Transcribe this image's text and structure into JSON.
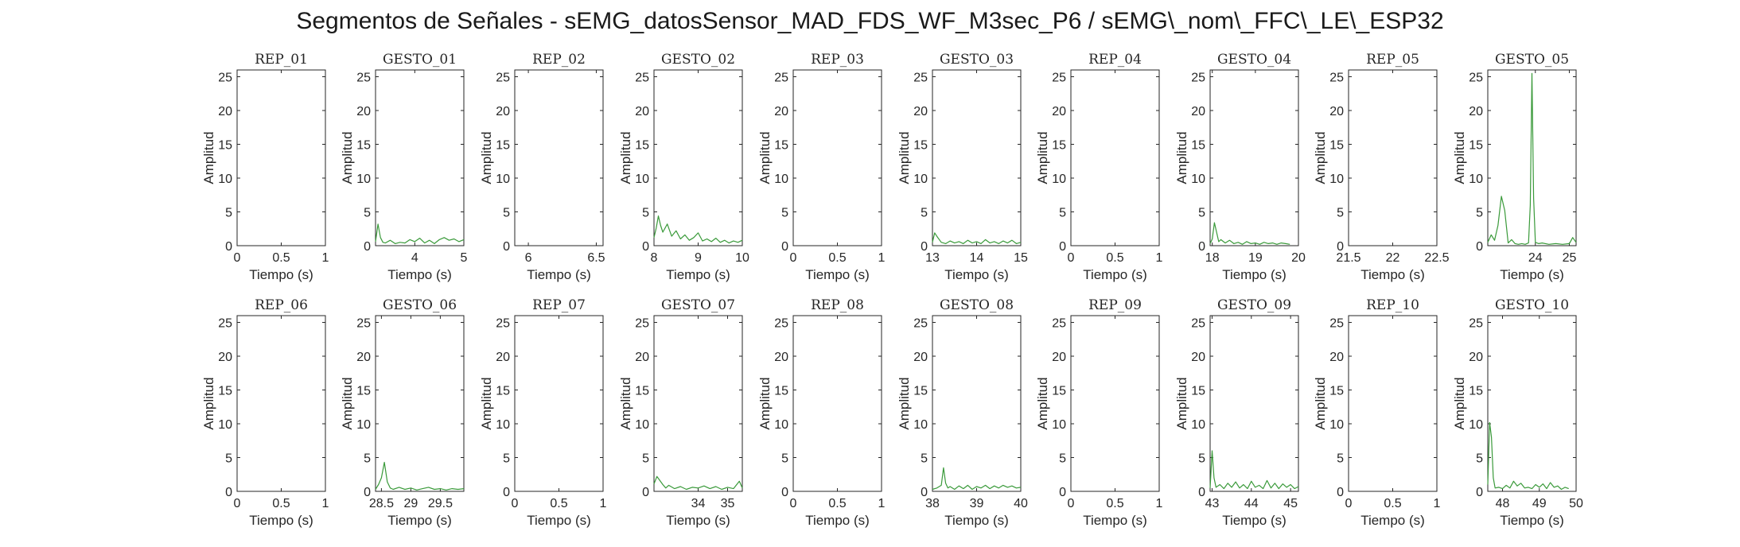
{
  "title": "Segmentos de Señales - sEMG_datosSensor_MAD_FDS_WF_M3sec_P6 / sEMG\\_nom\\_FFC\\_LE\\_ESP32",
  "series_color": "#3a9a3a",
  "chart_data": [
    {
      "type": "line",
      "title": "REP_01",
      "xlabel": "Tiempo (s)",
      "ylabel": "Amplitud",
      "xlim": [
        0,
        1
      ],
      "ylim": [
        0,
        26
      ],
      "xticks": [
        0,
        0.5,
        1
      ],
      "xtick_labels": [
        "0",
        "0.5",
        "1"
      ],
      "yticks": [
        0,
        5,
        10,
        15,
        20,
        25
      ],
      "x": [],
      "y": []
    },
    {
      "type": "line",
      "title": "GESTO_01",
      "xlabel": "Tiempo (s)",
      "ylabel": "Amplitud",
      "xlim": [
        3.2,
        5.0
      ],
      "ylim": [
        0,
        26
      ],
      "xticks": [
        4,
        5
      ],
      "xtick_labels": [
        "4",
        "5"
      ],
      "yticks": [
        0,
        5,
        10,
        15,
        20,
        25
      ],
      "x": [
        3.2,
        3.25,
        3.3,
        3.35,
        3.4,
        3.5,
        3.6,
        3.7,
        3.8,
        3.9,
        4.0,
        4.1,
        4.2,
        4.3,
        4.4,
        4.5,
        4.6,
        4.7,
        4.8,
        4.9,
        5.0
      ],
      "y": [
        0.6,
        3.2,
        1.2,
        0.5,
        0.4,
        0.8,
        0.3,
        0.5,
        0.4,
        0.9,
        0.6,
        1.1,
        0.4,
        0.8,
        0.3,
        0.9,
        1.2,
        0.8,
        1.0,
        0.6,
        0.9
      ]
    },
    {
      "type": "line",
      "title": "REP_02",
      "xlabel": "Tiempo (s)",
      "ylabel": "Amplitud",
      "xlim": [
        5.9,
        6.55
      ],
      "ylim": [
        0,
        26
      ],
      "xticks": [
        6,
        6.5
      ],
      "xtick_labels": [
        "6",
        "6.5"
      ],
      "yticks": [
        0,
        5,
        10,
        15,
        20,
        25
      ],
      "x": [],
      "y": []
    },
    {
      "type": "line",
      "title": "GESTO_02",
      "xlabel": "Tiempo (s)",
      "ylabel": "Amplitud",
      "xlim": [
        8,
        10
      ],
      "ylim": [
        0,
        26
      ],
      "xticks": [
        8,
        9,
        10
      ],
      "xtick_labels": [
        "8",
        "9",
        "10"
      ],
      "yticks": [
        0,
        5,
        10,
        15,
        20,
        25
      ],
      "x": [
        8.0,
        8.05,
        8.1,
        8.15,
        8.2,
        8.3,
        8.4,
        8.5,
        8.6,
        8.7,
        8.8,
        8.9,
        9.0,
        9.1,
        9.2,
        9.3,
        9.4,
        9.5,
        9.6,
        9.7,
        9.8,
        9.9,
        10.0
      ],
      "y": [
        1.2,
        2.6,
        4.4,
        3.0,
        2.0,
        3.2,
        1.4,
        2.2,
        1.0,
        1.6,
        0.8,
        1.2,
        1.9,
        0.7,
        1.0,
        0.6,
        1.1,
        0.5,
        0.8,
        0.4,
        0.7,
        0.5,
        0.8
      ]
    },
    {
      "type": "line",
      "title": "REP_03",
      "xlabel": "Tiempo (s)",
      "ylabel": "Amplitud",
      "xlim": [
        0,
        1
      ],
      "ylim": [
        0,
        26
      ],
      "xticks": [
        0,
        0.5,
        1
      ],
      "xtick_labels": [
        "0",
        "0.5",
        "1"
      ],
      "yticks": [
        0,
        5,
        10,
        15,
        20,
        25
      ],
      "x": [],
      "y": []
    },
    {
      "type": "line",
      "title": "GESTO_03",
      "xlabel": "Tiempo (s)",
      "ylabel": "Amplitud",
      "xlim": [
        13,
        15
      ],
      "ylim": [
        0,
        26
      ],
      "xticks": [
        13,
        14,
        15
      ],
      "xtick_labels": [
        "13",
        "14",
        "15"
      ],
      "yticks": [
        0,
        5,
        10,
        15,
        20,
        25
      ],
      "x": [
        13.0,
        13.05,
        13.1,
        13.2,
        13.3,
        13.4,
        13.5,
        13.6,
        13.7,
        13.8,
        13.9,
        14.0,
        14.1,
        14.2,
        14.3,
        14.4,
        14.5,
        14.6,
        14.7,
        14.8,
        14.9,
        15.0
      ],
      "y": [
        0.5,
        1.9,
        1.4,
        0.5,
        0.3,
        0.7,
        0.4,
        0.6,
        0.3,
        0.8,
        0.4,
        0.6,
        0.3,
        0.9,
        0.4,
        0.6,
        0.3,
        0.7,
        0.4,
        0.8,
        0.3,
        0.5
      ]
    },
    {
      "type": "line",
      "title": "REP_04",
      "xlabel": "Tiempo (s)",
      "ylabel": "Amplitud",
      "xlim": [
        0,
        1
      ],
      "ylim": [
        0,
        26
      ],
      "xticks": [
        0,
        0.5,
        1
      ],
      "xtick_labels": [
        "0",
        "0.5",
        "1"
      ],
      "yticks": [
        0,
        5,
        10,
        15,
        20,
        25
      ],
      "x": [],
      "y": []
    },
    {
      "type": "line",
      "title": "GESTO_04",
      "xlabel": "Tiempo (s)",
      "ylabel": "Amplitud",
      "xlim": [
        17.95,
        20.0
      ],
      "ylim": [
        0,
        26
      ],
      "xticks": [
        18,
        19,
        20
      ],
      "xtick_labels": [
        "18",
        "19",
        "20"
      ],
      "yticks": [
        0,
        5,
        10,
        15,
        20,
        25
      ],
      "x": [
        17.95,
        18.0,
        18.05,
        18.1,
        18.15,
        18.2,
        18.3,
        18.4,
        18.5,
        18.6,
        18.7,
        18.8,
        18.9,
        19.0,
        19.1,
        19.2,
        19.3,
        19.4,
        19.5,
        19.6,
        19.7,
        19.8
      ],
      "y": [
        0.3,
        1.0,
        3.4,
        2.0,
        0.6,
        0.9,
        0.4,
        0.8,
        0.3,
        0.5,
        0.2,
        0.6,
        0.3,
        0.4,
        0.2,
        0.5,
        0.3,
        0.4,
        0.2,
        0.4,
        0.3,
        0.2
      ]
    },
    {
      "type": "line",
      "title": "REP_05",
      "xlabel": "Tiempo (s)",
      "ylabel": "Amplitud",
      "xlim": [
        21.5,
        22.5
      ],
      "ylim": [
        0,
        26
      ],
      "xticks": [
        21.5,
        22,
        22.5
      ],
      "xtick_labels": [
        "21.5",
        "22",
        "22.5"
      ],
      "yticks": [
        0,
        5,
        10,
        15,
        20,
        25
      ],
      "x": [],
      "y": []
    },
    {
      "type": "line",
      "title": "GESTO_05",
      "xlabel": "Tiempo (s)",
      "ylabel": "Amplitud",
      "xlim": [
        22.6,
        25.2
      ],
      "ylim": [
        0,
        26
      ],
      "xticks": [
        24,
        25
      ],
      "xtick_labels": [
        "24",
        "25"
      ],
      "yticks": [
        0,
        5,
        10,
        15,
        20,
        25
      ],
      "x": [
        22.6,
        22.7,
        22.8,
        22.9,
        23.0,
        23.1,
        23.2,
        23.3,
        23.4,
        23.5,
        23.6,
        23.7,
        23.8,
        23.85,
        23.9,
        23.95,
        24.0,
        24.1,
        24.2,
        24.4,
        24.6,
        24.8,
        25.0,
        25.1,
        25.2
      ],
      "y": [
        0.5,
        1.6,
        0.8,
        3.0,
        7.3,
        5.2,
        0.4,
        0.9,
        0.3,
        0.2,
        0.3,
        0.2,
        0.4,
        6.0,
        25.5,
        7.0,
        0.5,
        0.3,
        0.4,
        0.2,
        0.3,
        0.2,
        0.3,
        1.2,
        0.5
      ]
    },
    {
      "type": "line",
      "title": "REP_06",
      "xlabel": "Tiempo (s)",
      "ylabel": "Amplitud",
      "xlim": [
        0,
        1
      ],
      "ylim": [
        0,
        26
      ],
      "xticks": [
        0,
        0.5,
        1
      ],
      "xtick_labels": [
        "0",
        "0.5",
        "1"
      ],
      "yticks": [
        0,
        5,
        10,
        15,
        20,
        25
      ],
      "x": [],
      "y": []
    },
    {
      "type": "line",
      "title": "GESTO_06",
      "xlabel": "Tiempo (s)",
      "ylabel": "Amplitud",
      "xlim": [
        28.4,
        29.9
      ],
      "ylim": [
        0,
        26
      ],
      "xticks": [
        28.5,
        29,
        29.5
      ],
      "xtick_labels": [
        "28.5",
        "29",
        "29.5"
      ],
      "yticks": [
        0,
        5,
        10,
        15,
        20,
        25
      ],
      "x": [
        28.4,
        28.45,
        28.5,
        28.55,
        28.6,
        28.65,
        28.7,
        28.8,
        28.9,
        29.0,
        29.1,
        29.2,
        29.3,
        29.4,
        29.5,
        29.6,
        29.7,
        29.8,
        29.9
      ],
      "y": [
        0.3,
        1.0,
        2.0,
        4.3,
        1.4,
        0.5,
        0.3,
        0.6,
        0.3,
        0.5,
        0.2,
        0.4,
        0.6,
        0.3,
        0.4,
        0.2,
        0.4,
        0.3,
        0.4
      ]
    },
    {
      "type": "line",
      "title": "REP_07",
      "xlabel": "Tiempo (s)",
      "ylabel": "Amplitud",
      "xlim": [
        0,
        1
      ],
      "ylim": [
        0,
        26
      ],
      "xticks": [
        0,
        0.5,
        1
      ],
      "xtick_labels": [
        "0",
        "0.5",
        "1"
      ],
      "yticks": [
        0,
        5,
        10,
        15,
        20,
        25
      ],
      "x": [],
      "y": []
    },
    {
      "type": "line",
      "title": "GESTO_07",
      "xlabel": "Tiempo (s)",
      "ylabel": "Amplitud",
      "xlim": [
        32.5,
        35.5
      ],
      "ylim": [
        0,
        26
      ],
      "xticks": [
        34,
        35
      ],
      "xtick_labels": [
        "34",
        "35"
      ],
      "yticks": [
        0,
        5,
        10,
        15,
        20,
        25
      ],
      "x": [
        32.5,
        32.6,
        32.7,
        32.8,
        32.9,
        33.0,
        33.2,
        33.4,
        33.6,
        33.8,
        34.0,
        34.2,
        34.4,
        34.6,
        34.8,
        35.0,
        35.2,
        35.4,
        35.5
      ],
      "y": [
        1.1,
        2.2,
        1.6,
        1.0,
        0.5,
        0.9,
        0.4,
        0.7,
        0.3,
        0.6,
        0.5,
        0.8,
        0.4,
        0.7,
        0.3,
        0.6,
        0.4,
        1.5,
        0.5
      ]
    },
    {
      "type": "line",
      "title": "REP_08",
      "xlabel": "Tiempo (s)",
      "ylabel": "Amplitud",
      "xlim": [
        0,
        1
      ],
      "ylim": [
        0,
        26
      ],
      "xticks": [
        0,
        0.5,
        1
      ],
      "xtick_labels": [
        "0",
        "0.5",
        "1"
      ],
      "yticks": [
        0,
        5,
        10,
        15,
        20,
        25
      ],
      "x": [],
      "y": []
    },
    {
      "type": "line",
      "title": "GESTO_08",
      "xlabel": "Tiempo (s)",
      "ylabel": "Amplitud",
      "xlim": [
        38,
        40
      ],
      "ylim": [
        0,
        26
      ],
      "xticks": [
        38,
        39,
        40
      ],
      "xtick_labels": [
        "38",
        "39",
        "40"
      ],
      "yticks": [
        0,
        5,
        10,
        15,
        20,
        25
      ],
      "x": [
        38.0,
        38.1,
        38.2,
        38.25,
        38.3,
        38.35,
        38.4,
        38.5,
        38.6,
        38.7,
        38.8,
        38.9,
        39.0,
        39.1,
        39.2,
        39.3,
        39.4,
        39.5,
        39.6,
        39.7,
        39.8,
        39.9,
        40.0
      ],
      "y": [
        0.3,
        0.5,
        0.9,
        3.5,
        1.2,
        0.5,
        0.7,
        0.3,
        0.8,
        0.4,
        0.9,
        0.3,
        0.7,
        0.5,
        0.9,
        0.4,
        0.8,
        0.5,
        0.9,
        0.6,
        0.8,
        0.5,
        0.6
      ]
    },
    {
      "type": "line",
      "title": "REP_09",
      "xlabel": "Tiempo (s)",
      "ylabel": "Amplitud",
      "xlim": [
        0,
        1
      ],
      "ylim": [
        0,
        26
      ],
      "xticks": [
        0,
        0.5,
        1
      ],
      "xtick_labels": [
        "0",
        "0.5",
        "1"
      ],
      "yticks": [
        0,
        5,
        10,
        15,
        20,
        25
      ],
      "x": [],
      "y": []
    },
    {
      "type": "line",
      "title": "GESTO_09",
      "xlabel": "Tiempo (s)",
      "ylabel": "Amplitud",
      "xlim": [
        42.95,
        45.2
      ],
      "ylim": [
        0,
        26
      ],
      "xticks": [
        43,
        44,
        45
      ],
      "xtick_labels": [
        "43",
        "44",
        "45"
      ],
      "yticks": [
        0,
        5,
        10,
        15,
        20,
        25
      ],
      "x": [
        42.95,
        43.0,
        43.05,
        43.1,
        43.2,
        43.3,
        43.4,
        43.5,
        43.6,
        43.7,
        43.8,
        43.9,
        44.0,
        44.1,
        44.2,
        44.3,
        44.4,
        44.5,
        44.6,
        44.7,
        44.8,
        44.9,
        45.0,
        45.1,
        45.2
      ],
      "y": [
        0.5,
        6.0,
        2.0,
        0.6,
        1.0,
        0.4,
        1.2,
        0.6,
        1.4,
        0.5,
        1.0,
        0.4,
        1.5,
        0.6,
        0.9,
        0.4,
        1.6,
        0.5,
        1.2,
        0.4,
        1.1,
        0.6,
        1.0,
        0.4,
        0.7
      ]
    },
    {
      "type": "line",
      "title": "REP_10",
      "xlabel": "Tiempo (s)",
      "ylabel": "Amplitud",
      "xlim": [
        0,
        1
      ],
      "ylim": [
        0,
        26
      ],
      "xticks": [
        0,
        0.5,
        1
      ],
      "xtick_labels": [
        "0",
        "0.5",
        "1"
      ],
      "yticks": [
        0,
        5,
        10,
        15,
        20,
        25
      ],
      "x": [],
      "y": []
    },
    {
      "type": "line",
      "title": "GESTO_10",
      "xlabel": "Tiempo (s)",
      "ylabel": "Amplitud",
      "xlim": [
        47.6,
        50
      ],
      "ylim": [
        0,
        26
      ],
      "xticks": [
        48,
        49,
        50
      ],
      "xtick_labels": [
        "48",
        "49",
        "50"
      ],
      "yticks": [
        0,
        5,
        10,
        15,
        20,
        25
      ],
      "x": [
        47.6,
        47.65,
        47.7,
        47.75,
        47.8,
        47.9,
        48.0,
        48.1,
        48.2,
        48.3,
        48.4,
        48.5,
        48.6,
        48.7,
        48.8,
        48.9,
        49.0,
        49.1,
        49.2,
        49.3,
        49.4,
        49.5,
        49.6,
        49.7,
        49.8
      ],
      "y": [
        1.0,
        10.2,
        8.0,
        2.0,
        0.5,
        0.6,
        0.4,
        0.9,
        0.5,
        1.5,
        0.8,
        1.2,
        0.5,
        0.6,
        0.4,
        1.0,
        0.6,
        1.1,
        0.4,
        1.3,
        0.6,
        0.8,
        0.3,
        0.6,
        0.4
      ]
    }
  ]
}
